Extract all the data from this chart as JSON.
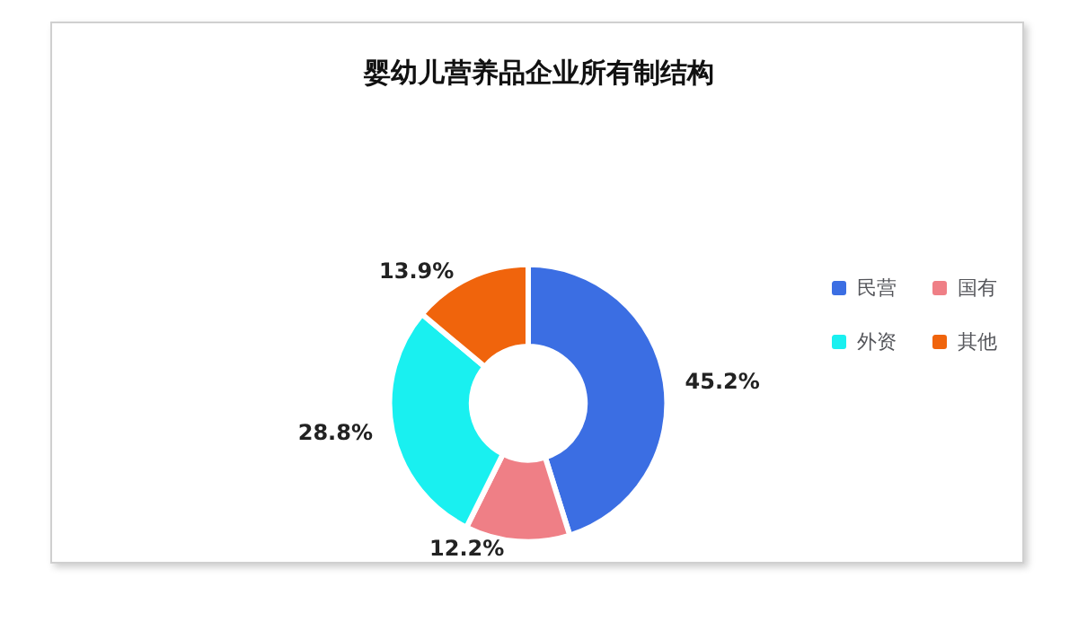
{
  "chart_data": {
    "type": "donut",
    "title": "婴幼儿营养品企业所有制结构",
    "categories": [
      "民营",
      "国有",
      "外资",
      "其他"
    ],
    "values": [
      45.2,
      12.2,
      28.8,
      13.9
    ],
    "value_labels": [
      "45.2%",
      "12.2%",
      "28.8%",
      "13.9%"
    ],
    "colors": [
      "#3b6ee3",
      "#ef7f86",
      "#19f0f0",
      "#f0640c"
    ],
    "legend": "right"
  }
}
